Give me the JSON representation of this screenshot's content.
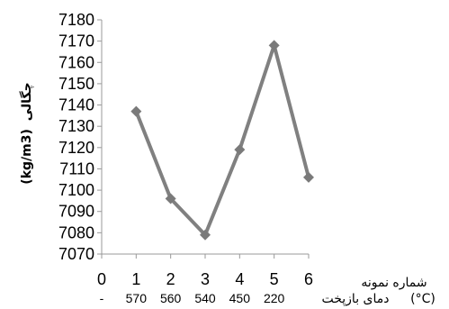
{
  "chart_data": {
    "type": "line",
    "x": [
      1,
      2,
      3,
      4,
      5,
      6
    ],
    "values": [
      7137,
      7096,
      7079,
      7119,
      7168,
      7106
    ],
    "xlim": [
      0,
      6
    ],
    "ylim": [
      7070,
      7180
    ],
    "ytick_step": 10,
    "x_ticks": [
      "0",
      "1",
      "2",
      "3",
      "4",
      "5",
      "6"
    ],
    "temperature_ticks": [
      "-",
      "570",
      "560",
      "540",
      "450",
      "220"
    ],
    "xlabel_samples": "شماره نمونه",
    "xlabel_temp": "دمای بازپخت",
    "xlabel_temp_unit": "(°C)",
    "ylabel_fa": "چگالی",
    "ylabel_unit": "(kg/m3)",
    "line_color": "#808080",
    "marker_color": "#7a7a7a",
    "axis_color": "#999999",
    "grid": false,
    "legend": "none"
  }
}
